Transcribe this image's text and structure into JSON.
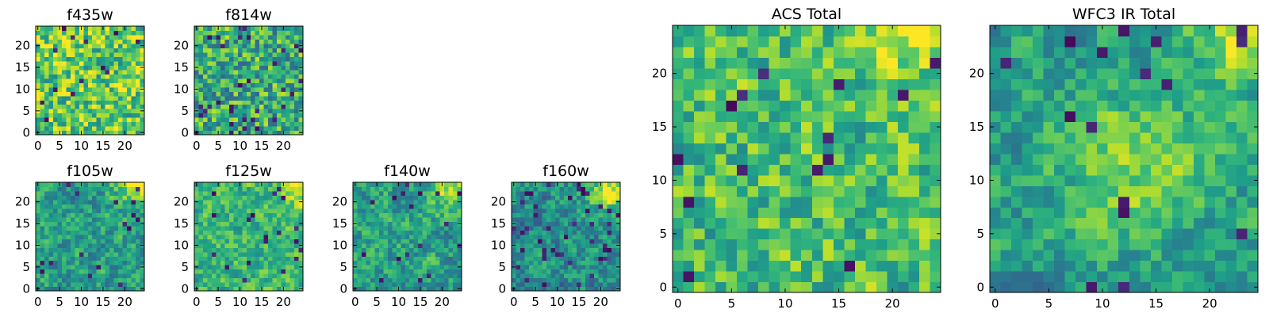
{
  "figure": {
    "colormap": "viridis",
    "colors": {
      "low": "#440154",
      "mid": "#21918c",
      "high": "#fde725"
    }
  },
  "chart_data": [
    {
      "type": "heatmap",
      "id": "f435w",
      "title": "f435w",
      "xlabel": "",
      "ylabel": "",
      "grid_size": [
        25,
        25
      ],
      "xlim": [
        -0.5,
        24.5
      ],
      "ylim": [
        -0.5,
        24.5
      ],
      "x_ticks": [
        0,
        5,
        10,
        15,
        20
      ],
      "y_ticks": [
        0,
        5,
        10,
        15,
        20
      ],
      "x_tick_labels": [
        "0",
        "5",
        "10",
        "15",
        "20"
      ],
      "y_tick_labels": [
        "0",
        "5",
        "10",
        "15",
        "20"
      ],
      "origin": "lower",
      "value_range": [
        0,
        1
      ],
      "style": {
        "mean": 0.75,
        "spread": 0.32,
        "smooth": 0.15,
        "dark_rate": 0.03,
        "seed": 11
      },
      "bright_spots": []
    },
    {
      "type": "heatmap",
      "id": "f814w",
      "title": "f814w",
      "xlabel": "",
      "ylabel": "",
      "grid_size": [
        25,
        25
      ],
      "xlim": [
        -0.5,
        24.5
      ],
      "ylim": [
        -0.5,
        24.5
      ],
      "x_ticks": [
        0,
        5,
        10,
        15,
        20
      ],
      "y_ticks": [
        0,
        5,
        10,
        15,
        20
      ],
      "x_tick_labels": [
        "0",
        "5",
        "10",
        "15",
        "20"
      ],
      "y_tick_labels": [
        "0",
        "5",
        "10",
        "15",
        "20"
      ],
      "origin": "lower",
      "value_range": [
        0,
        1
      ],
      "style": {
        "mean": 0.62,
        "spread": 0.34,
        "smooth": 0.15,
        "dark_rate": 0.045,
        "seed": 23
      },
      "bright_spots": []
    },
    {
      "type": "heatmap",
      "id": "f105w",
      "title": "f105w",
      "xlabel": "",
      "ylabel": "",
      "grid_size": [
        25,
        25
      ],
      "xlim": [
        -0.5,
        24.5
      ],
      "ylim": [
        -0.5,
        24.5
      ],
      "x_ticks": [
        0,
        5,
        10,
        15,
        20
      ],
      "y_ticks": [
        0,
        5,
        10,
        15,
        20
      ],
      "x_tick_labels": [
        "0",
        "5",
        "10",
        "15",
        "20"
      ],
      "y_tick_labels": [
        "0",
        "5",
        "10",
        "15",
        "20"
      ],
      "origin": "lower",
      "value_range": [
        0,
        1
      ],
      "style": {
        "mean": 0.55,
        "spread": 0.3,
        "smooth": 0.45,
        "dark_rate": 0.03,
        "seed": 37
      },
      "bright_spots": [
        {
          "x": 24,
          "y": 24,
          "r": 4,
          "amp": 0.4
        }
      ]
    },
    {
      "type": "heatmap",
      "id": "f125w",
      "title": "f125w",
      "xlabel": "",
      "ylabel": "",
      "grid_size": [
        25,
        25
      ],
      "xlim": [
        -0.5,
        24.5
      ],
      "ylim": [
        -0.5,
        24.5
      ],
      "x_ticks": [
        0,
        5,
        10,
        15,
        20
      ],
      "y_ticks": [
        0,
        5,
        10,
        15,
        20
      ],
      "x_tick_labels": [
        "0",
        "5",
        "10",
        "15",
        "20"
      ],
      "y_tick_labels": [
        "0",
        "5",
        "10",
        "15",
        "20"
      ],
      "origin": "lower",
      "value_range": [
        0,
        1
      ],
      "style": {
        "mean": 0.66,
        "spread": 0.28,
        "smooth": 0.45,
        "dark_rate": 0.025,
        "seed": 41
      },
      "bright_spots": [
        {
          "x": 24,
          "y": 24,
          "r": 3,
          "amp": 0.3
        }
      ]
    },
    {
      "type": "heatmap",
      "id": "f140w",
      "title": "f140w",
      "xlabel": "",
      "ylabel": "",
      "grid_size": [
        25,
        25
      ],
      "xlim": [
        -0.5,
        24.5
      ],
      "ylim": [
        -0.5,
        24.5
      ],
      "x_ticks": [
        0,
        5,
        10,
        15,
        20
      ],
      "y_ticks": [
        0,
        5,
        10,
        15,
        20
      ],
      "x_tick_labels": [
        "0",
        "5",
        "10",
        "15",
        "20"
      ],
      "y_tick_labels": [
        "0",
        "5",
        "10",
        "15",
        "20"
      ],
      "origin": "lower",
      "value_range": [
        0,
        1
      ],
      "style": {
        "mean": 0.56,
        "spread": 0.3,
        "smooth": 0.45,
        "dark_rate": 0.035,
        "seed": 53
      },
      "bright_spots": [
        {
          "x": 23,
          "y": 23,
          "r": 4,
          "amp": 0.35
        }
      ]
    },
    {
      "type": "heatmap",
      "id": "f160w",
      "title": "f160w",
      "xlabel": "",
      "ylabel": "",
      "grid_size": [
        25,
        25
      ],
      "xlim": [
        -0.5,
        24.5
      ],
      "ylim": [
        -0.5,
        24.5
      ],
      "x_ticks": [
        0,
        5,
        10,
        15,
        20
      ],
      "y_ticks": [
        0,
        5,
        10,
        15,
        20
      ],
      "x_tick_labels": [
        "0",
        "5",
        "10",
        "15",
        "20"
      ],
      "y_tick_labels": [
        "0",
        "5",
        "10",
        "15",
        "20"
      ],
      "origin": "lower",
      "value_range": [
        0,
        1
      ],
      "style": {
        "mean": 0.5,
        "spread": 0.32,
        "smooth": 0.5,
        "dark_rate": 0.05,
        "seed": 67
      },
      "bright_spots": [
        {
          "x": 23,
          "y": 23,
          "r": 4,
          "amp": 0.45
        }
      ]
    },
    {
      "type": "heatmap",
      "id": "acs-total",
      "title": "ACS Total",
      "xlabel": "",
      "ylabel": "",
      "grid_size": [
        25,
        25
      ],
      "xlim": [
        -0.5,
        24.5
      ],
      "ylim": [
        -0.5,
        24.5
      ],
      "x_ticks": [
        0,
        5,
        10,
        15,
        20
      ],
      "y_ticks": [
        0,
        5,
        10,
        15,
        20
      ],
      "x_tick_labels": [
        "0",
        "5",
        "10",
        "15",
        "20"
      ],
      "y_tick_labels": [
        "0",
        "5",
        "10",
        "15",
        "20"
      ],
      "origin": "lower",
      "value_range": [
        0,
        1
      ],
      "style": {
        "mean": 0.7,
        "spread": 0.28,
        "smooth": 0.25,
        "dark_rate": 0.03,
        "seed": 79
      },
      "bright_spots": [
        {
          "x": 22,
          "y": 24,
          "r": 3,
          "amp": 0.25
        }
      ]
    },
    {
      "type": "heatmap",
      "id": "wfc3-ir-total",
      "title": "WFC3 IR Total",
      "xlabel": "",
      "ylabel": "",
      "grid_size": [
        25,
        25
      ],
      "xlim": [
        -0.5,
        24.5
      ],
      "ylim": [
        -0.5,
        24.5
      ],
      "x_ticks": [
        0,
        5,
        10,
        15,
        20
      ],
      "y_ticks": [
        0,
        5,
        10,
        15,
        20
      ],
      "x_tick_labels": [
        "0",
        "5",
        "10",
        "15",
        "20"
      ],
      "y_tick_labels": [
        "0",
        "5",
        "10",
        "15",
        "20"
      ],
      "origin": "lower",
      "value_range": [
        0,
        1
      ],
      "style": {
        "mean": 0.55,
        "spread": 0.28,
        "smooth": 0.5,
        "dark_rate": 0.03,
        "seed": 97
      },
      "bright_spots": [
        {
          "x": 23,
          "y": 24,
          "r": 3,
          "amp": 0.4
        },
        {
          "x": 13,
          "y": 12,
          "r": 5,
          "amp": 0.25
        }
      ]
    }
  ]
}
